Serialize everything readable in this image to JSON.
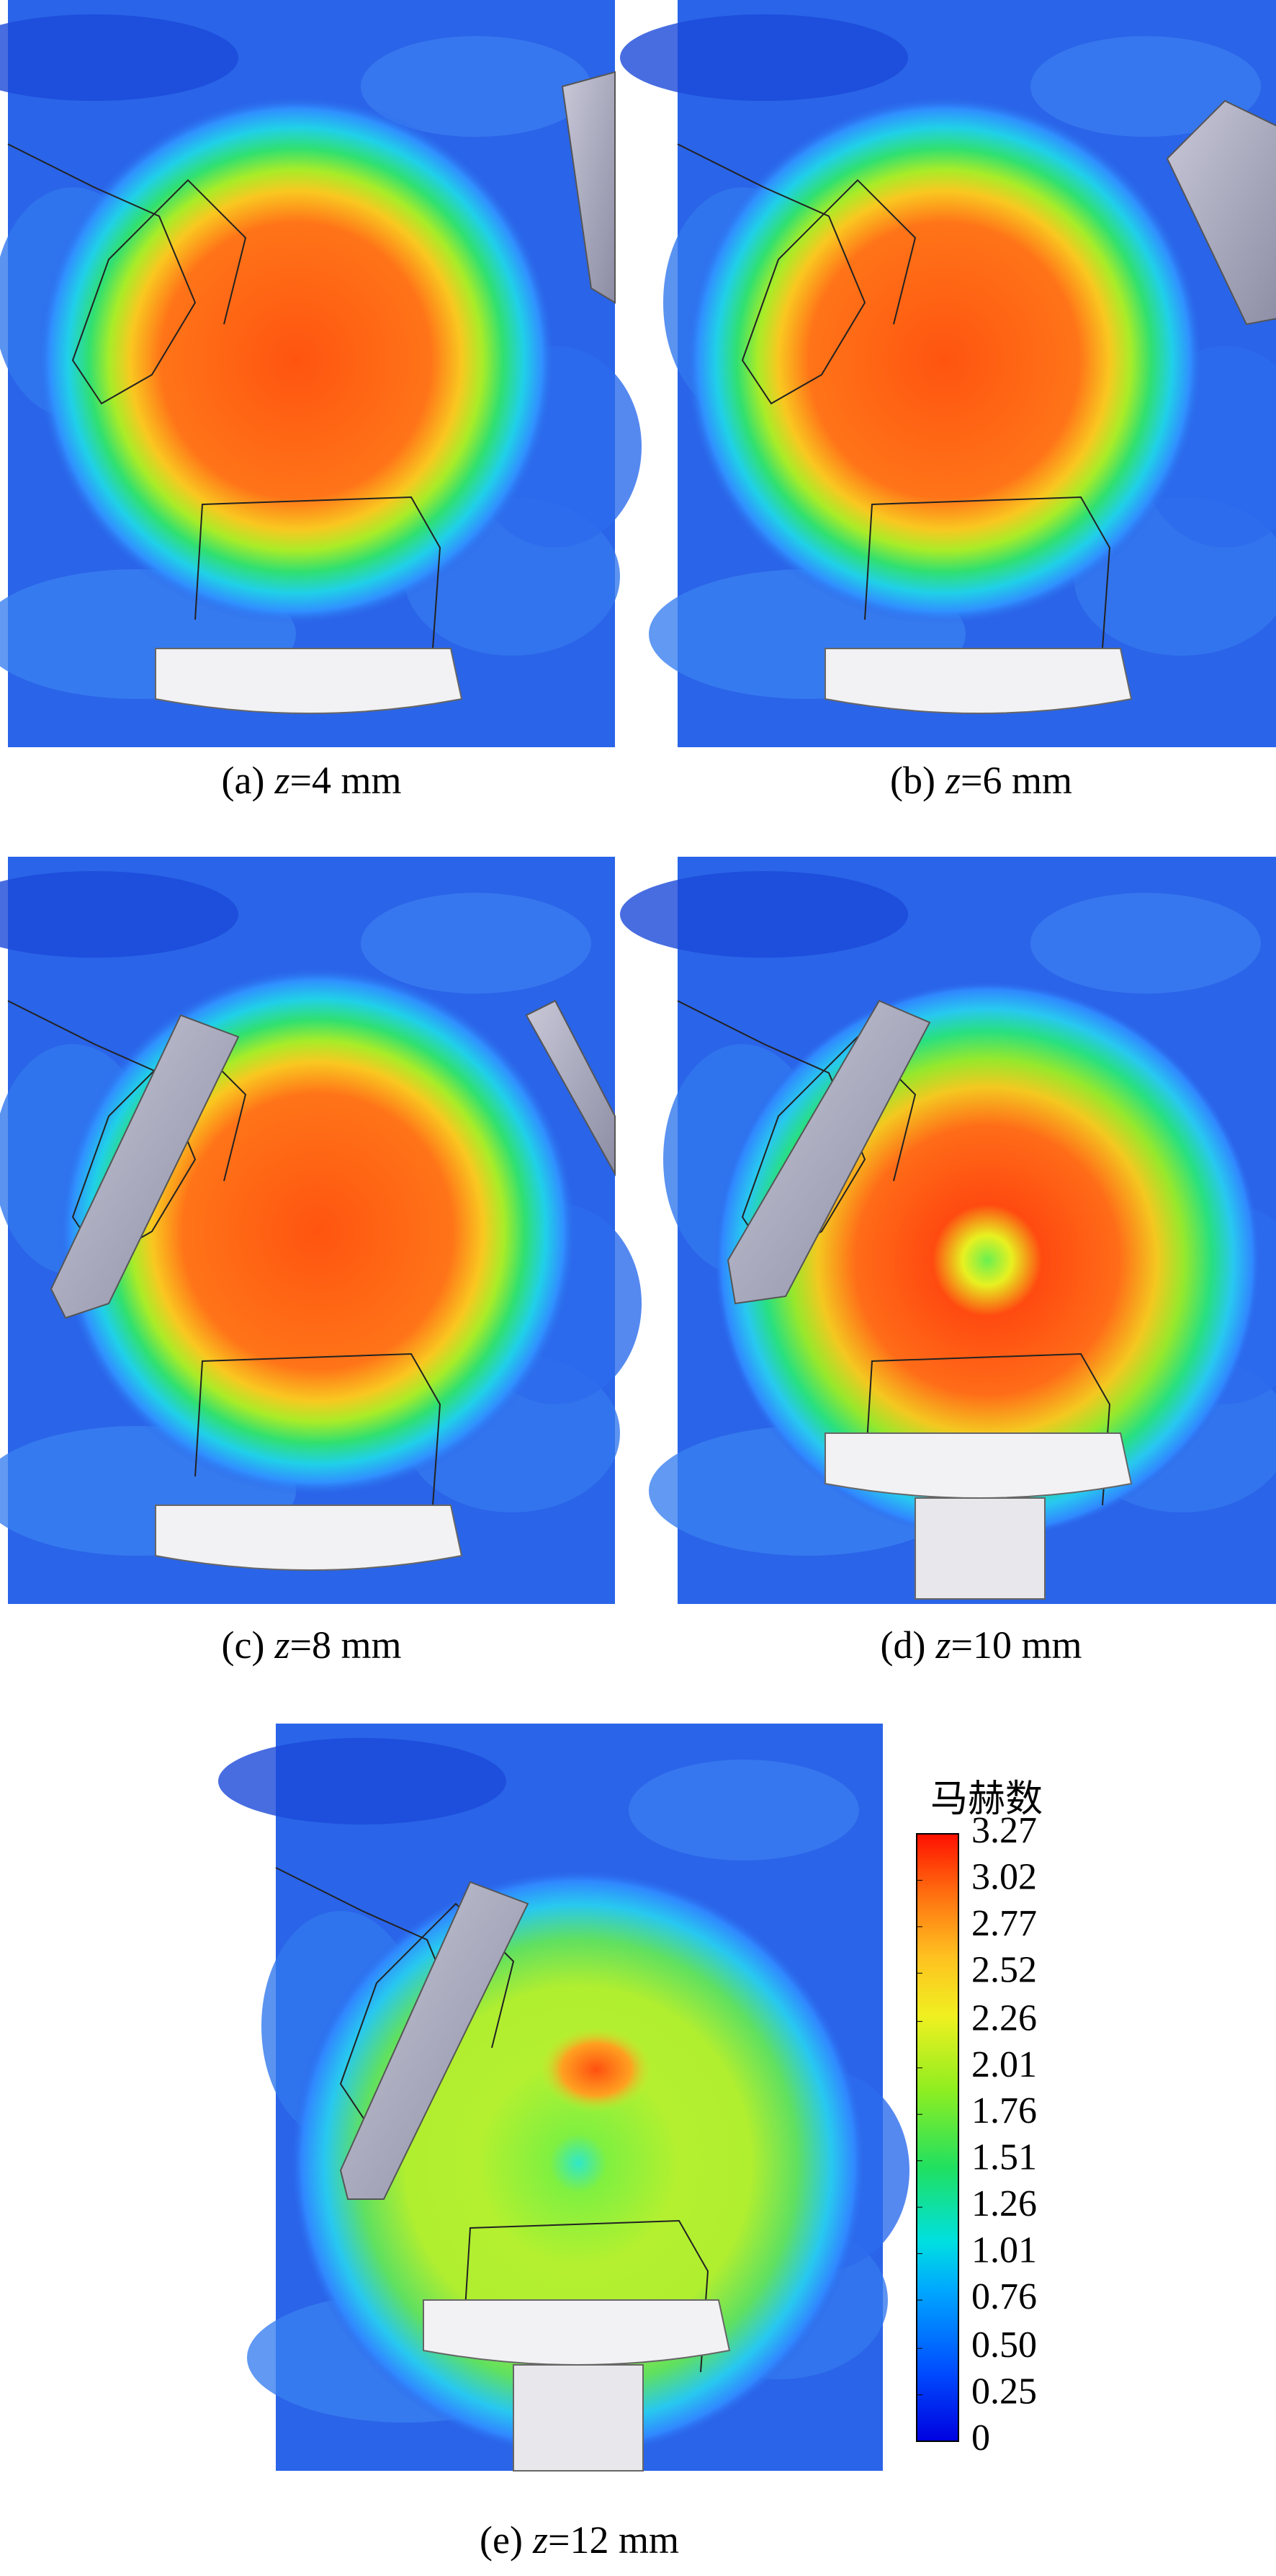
{
  "panels": [
    {
      "label": "(a)",
      "variable": "z",
      "value": "=4 mm"
    },
    {
      "label": "(b)",
      "variable": "z",
      "value": "=6 mm"
    },
    {
      "label": "(c)",
      "variable": "z",
      "value": "=8 mm"
    },
    {
      "label": "(d)",
      "variable": "z",
      "value": "=10 mm"
    },
    {
      "label": "(e)",
      "variable": "z",
      "value": "=12 mm"
    }
  ],
  "colorbar": {
    "title": "马赫数",
    "ticks": [
      0,
      0.25,
      {
        "value": 0.5,
        "label": "0.50"
      },
      0.76,
      1.01,
      1.26,
      1.51,
      1.76,
      2.01,
      2.26,
      2.52,
      2.77,
      3.02,
      3.27
    ]
  }
}
